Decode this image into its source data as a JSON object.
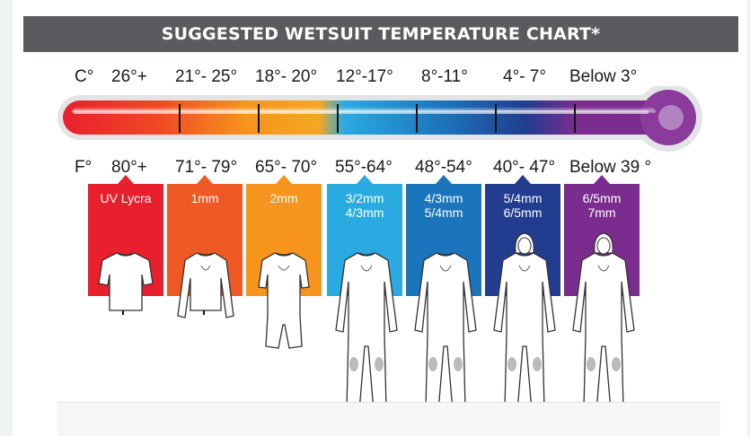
{
  "title": "SUGGESTED WETSUIT TEMPERATURE CHART*",
  "celsius": {
    "unit_label": "C°",
    "ranges": [
      "26°+",
      "21°- 25°",
      "18°- 20°",
      "12°-17°",
      "8°-11°",
      "4°- 7°",
      "Below 3°"
    ]
  },
  "fahrenheit": {
    "unit_label": "F°",
    "ranges": [
      "80°+",
      "71°- 79°",
      "65°- 70°",
      "55°-64°",
      "48°-54°",
      "40°- 47°",
      "Below 39 °"
    ]
  },
  "suits": [
    {
      "lines": [
        "UV Lycra"
      ],
      "color": "#e8202e",
      "figure": "rash-guard-icon"
    },
    {
      "lines": [
        "1mm"
      ],
      "color": "#ef5a24",
      "figure": "long-sleeve-top-icon"
    },
    {
      "lines": [
        "2mm"
      ],
      "color": "#f7941d",
      "figure": "springsuit-icon"
    },
    {
      "lines": [
        "3/2mm",
        "4/3mm"
      ],
      "color": "#29abe2",
      "figure": "fullsuit-icon"
    },
    {
      "lines": [
        "4/3mm",
        "5/4mm"
      ],
      "color": "#1b75bc",
      "figure": "fullsuit-icon"
    },
    {
      "lines": [
        "5/4mm",
        "6/5mm"
      ],
      "color": "#223c8f",
      "figure": "hooded-fullsuit-icon"
    },
    {
      "lines": [
        "6/5mm",
        "7mm"
      ],
      "color": "#7b2c8f",
      "figure": "hooded-fullsuit-icon"
    }
  ],
  "colors": {
    "title_bar": "#5a5b5e",
    "thermo_hot": "#e8202e",
    "thermo_cold": "#7b2c8f",
    "thermo_bulb": "#8a3b9b"
  }
}
